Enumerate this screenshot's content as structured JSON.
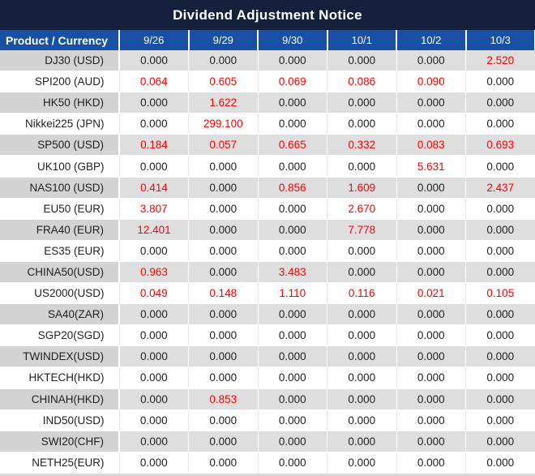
{
  "colors": {
    "title_bg": "#15213c",
    "header_bg": "#1750a4",
    "row_gray_product": "#d3d3d3",
    "row_gray_value": "#dedede",
    "separator_light": "#e7e7e7",
    "highlight_red": "#fe0000",
    "text_dark": "#1f1f1f",
    "bottom_strip": "#d9d9d9"
  },
  "chart_data": {
    "type": "table",
    "title": "Dividend Adjustment Notice",
    "columns": [
      "Product / Currency",
      "9/26",
      "9/29",
      "9/30",
      "10/1",
      "10/2",
      "10/3"
    ],
    "rows": [
      {
        "product": "DJ30 (USD)",
        "values": [
          "0.000",
          "0.000",
          "0.000",
          "0.000",
          "0.000",
          "2.520"
        ],
        "red": [
          false,
          false,
          false,
          false,
          false,
          true
        ]
      },
      {
        "product": "SPI200 (AUD)",
        "values": [
          "0.064",
          "0.605",
          "0.069",
          "0.086",
          "0.090",
          "0.000"
        ],
        "red": [
          true,
          true,
          true,
          true,
          true,
          false
        ]
      },
      {
        "product": "HK50 (HKD)",
        "values": [
          "0.000",
          "1.622",
          "0.000",
          "0.000",
          "0.000",
          "0.000"
        ],
        "red": [
          false,
          true,
          false,
          false,
          false,
          false
        ]
      },
      {
        "product": "Nikkei225 (JPN)",
        "values": [
          "0.000",
          "299.100",
          "0.000",
          "0.000",
          "0.000",
          "0.000"
        ],
        "red": [
          false,
          true,
          false,
          false,
          false,
          false
        ]
      },
      {
        "product": "SP500 (USD)",
        "values": [
          "0.184",
          "0.057",
          "0.665",
          "0.332",
          "0.083",
          "0.693"
        ],
        "red": [
          true,
          true,
          true,
          true,
          true,
          true
        ]
      },
      {
        "product": "UK100 (GBP)",
        "values": [
          "0.000",
          "0.000",
          "0.000",
          "0.000",
          "5.631",
          "0.000"
        ],
        "red": [
          false,
          false,
          false,
          false,
          true,
          false
        ]
      },
      {
        "product": "NAS100 (USD)",
        "values": [
          "0.414",
          "0.000",
          "0.856",
          "1.609",
          "0.000",
          "2.437"
        ],
        "red": [
          true,
          false,
          true,
          true,
          false,
          true
        ]
      },
      {
        "product": "EU50 (EUR)",
        "values": [
          "3.807",
          "0.000",
          "0.000",
          "2.670",
          "0.000",
          "0.000"
        ],
        "red": [
          true,
          false,
          false,
          true,
          false,
          false
        ]
      },
      {
        "product": "FRA40 (EUR)",
        "values": [
          "12.401",
          "0.000",
          "0.000",
          "7.778",
          "0.000",
          "0.000"
        ],
        "red": [
          true,
          false,
          false,
          true,
          false,
          false
        ]
      },
      {
        "product": "ES35 (EUR)",
        "values": [
          "0.000",
          "0.000",
          "0.000",
          "0.000",
          "0.000",
          "0.000"
        ],
        "red": [
          false,
          false,
          false,
          false,
          false,
          false
        ]
      },
      {
        "product": "CHINA50(USD)",
        "values": [
          "0.963",
          "0.000",
          "3.483",
          "0.000",
          "0.000",
          "0.000"
        ],
        "red": [
          true,
          false,
          true,
          false,
          false,
          false
        ]
      },
      {
        "product": "US2000(USD)",
        "values": [
          "0.049",
          "0.148",
          "1.110",
          "0.116",
          "0.021",
          "0.105"
        ],
        "red": [
          true,
          true,
          true,
          true,
          true,
          true
        ]
      },
      {
        "product": "SA40(ZAR)",
        "values": [
          "0.000",
          "0.000",
          "0.000",
          "0.000",
          "0.000",
          "0.000"
        ],
        "red": [
          false,
          false,
          false,
          false,
          false,
          false
        ]
      },
      {
        "product": "SGP20(SGD)",
        "values": [
          "0.000",
          "0.000",
          "0.000",
          "0.000",
          "0.000",
          "0.000"
        ],
        "red": [
          false,
          false,
          false,
          false,
          false,
          false
        ]
      },
      {
        "product": "TWINDEX(USD)",
        "values": [
          "0.000",
          "0.000",
          "0.000",
          "0.000",
          "0.000",
          "0.000"
        ],
        "red": [
          false,
          false,
          false,
          false,
          false,
          false
        ]
      },
      {
        "product": "HKTECH(HKD)",
        "values": [
          "0.000",
          "0.000",
          "0.000",
          "0.000",
          "0.000",
          "0.000"
        ],
        "red": [
          false,
          false,
          false,
          false,
          false,
          false
        ]
      },
      {
        "product": "CHINAH(HKD)",
        "values": [
          "0.000",
          "0.853",
          "0.000",
          "0.000",
          "0.000",
          "0.000"
        ],
        "red": [
          false,
          true,
          false,
          false,
          false,
          false
        ]
      },
      {
        "product": "IND50(USD)",
        "values": [
          "0.000",
          "0.000",
          "0.000",
          "0.000",
          "0.000",
          "0.000"
        ],
        "red": [
          false,
          false,
          false,
          false,
          false,
          false
        ]
      },
      {
        "product": "SWI20(CHF)",
        "values": [
          "0.000",
          "0.000",
          "0.000",
          "0.000",
          "0.000",
          "0.000"
        ],
        "red": [
          false,
          false,
          false,
          false,
          false,
          false
        ]
      },
      {
        "product": "NETH25(EUR)",
        "values": [
          "0.000",
          "0.000",
          "0.000",
          "0.000",
          "0.000",
          "0.000"
        ],
        "red": [
          false,
          false,
          false,
          false,
          false,
          false
        ]
      }
    ]
  }
}
